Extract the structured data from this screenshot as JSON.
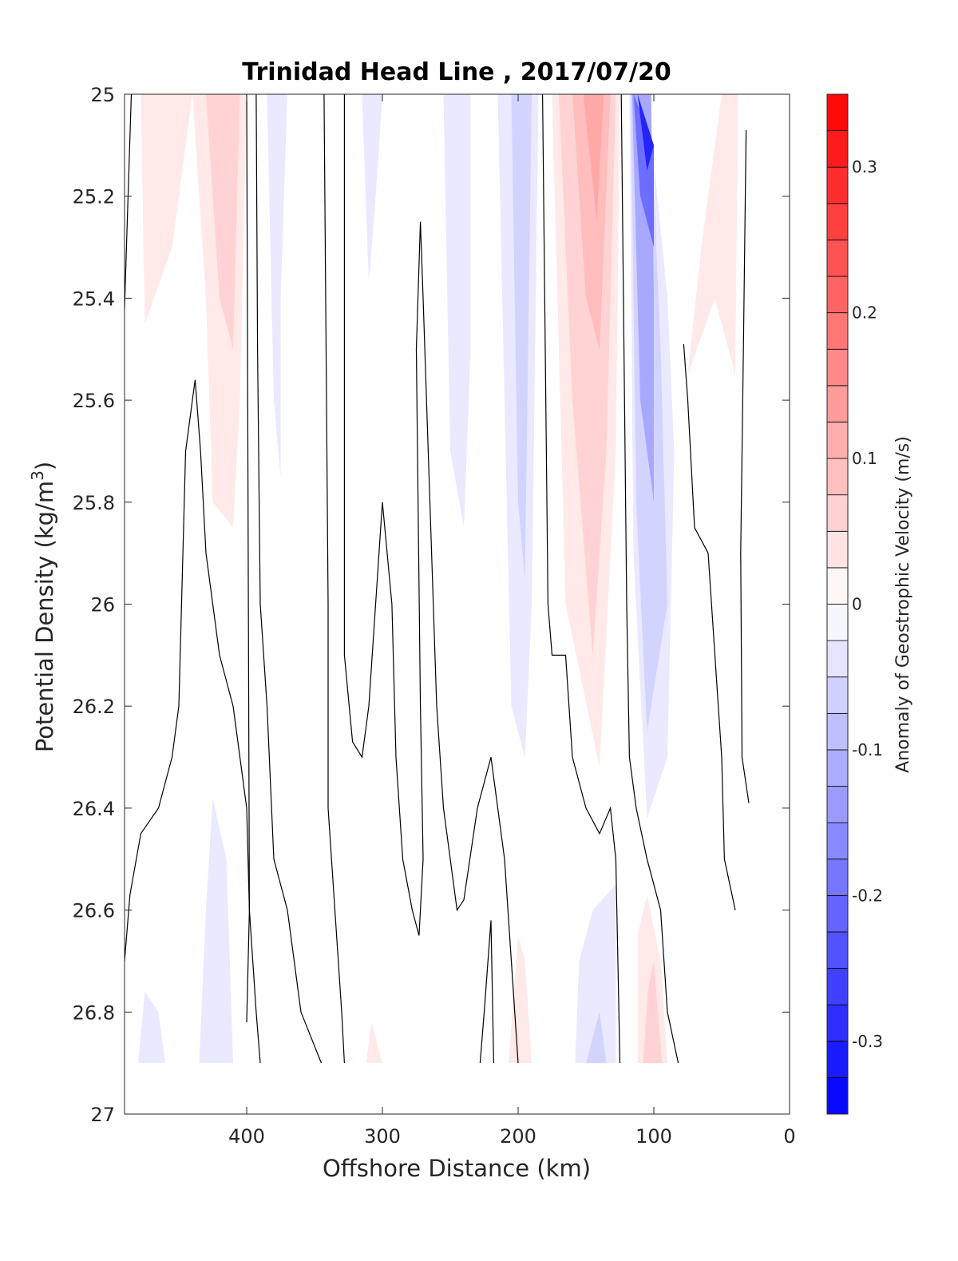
{
  "chart_data": {
    "type": "contourf",
    "title": "Trinidad Head Line , 2017/07/20",
    "xlabel": "Offshore Distance (km)",
    "ylabel": {
      "text": "Potential Density (kg/m",
      "superscript": "3",
      "suffix": ")"
    },
    "xlim": [
      490,
      0
    ],
    "ylim": [
      25,
      27
    ],
    "x_reversed": true,
    "y_reversed": true,
    "xticks": [
      400,
      300,
      200,
      100,
      0
    ],
    "yticks": [
      25,
      25.2,
      25.4,
      25.6,
      25.8,
      26,
      26.2,
      26.4,
      26.6,
      26.8,
      27
    ],
    "grid": false,
    "colorbar": {
      "label": "Anomaly of Geostrophic Velocity (m/s)",
      "range": [
        -0.35,
        0.35
      ],
      "levels": [
        -0.35,
        -0.325,
        -0.3,
        -0.275,
        -0.25,
        -0.225,
        -0.2,
        -0.175,
        -0.15,
        -0.125,
        -0.1,
        -0.075,
        -0.05,
        -0.025,
        0,
        0.025,
        0.05,
        0.075,
        0.1,
        0.125,
        0.15,
        0.175,
        0.2,
        0.225,
        0.25,
        0.275,
        0.3,
        0.325,
        0.35
      ],
      "ticks": [
        -0.3,
        -0.2,
        -0.1,
        0,
        0.1,
        0.2,
        0.3
      ],
      "tick_labels": [
        "-0.3",
        "-0.2",
        "-0.1",
        "0",
        "0.1",
        "0.2",
        "0.3"
      ],
      "neg_color": "#0000ff",
      "pos_color": "#ff0000",
      "mid_color": "#ffffff"
    },
    "filled_regions": [
      {
        "value": 0.03,
        "points": [
          [
            478,
            25
          ],
          [
            440,
            25
          ],
          [
            455,
            25.3
          ],
          [
            475,
            25.45
          ]
        ]
      },
      {
        "value": 0.03,
        "points": [
          [
            440,
            25
          ],
          [
            400,
            25
          ],
          [
            405,
            25.6
          ],
          [
            410,
            25.85
          ],
          [
            425,
            25.8
          ],
          [
            430,
            25.4
          ]
        ]
      },
      {
        "value": 0.06,
        "points": [
          [
            430,
            25
          ],
          [
            405,
            25
          ],
          [
            410,
            25.5
          ],
          [
            420,
            25.4
          ]
        ]
      },
      {
        "value": -0.03,
        "points": [
          [
            385,
            25
          ],
          [
            370,
            25
          ],
          [
            375,
            25.4
          ],
          [
            375,
            25.75
          ],
          [
            380,
            25.6
          ]
        ]
      },
      {
        "value": -0.03,
        "points": [
          [
            315,
            25
          ],
          [
            300,
            25
          ],
          [
            305,
            25.2
          ],
          [
            310,
            25.37
          ]
        ]
      },
      {
        "value": -0.03,
        "points": [
          [
            255,
            25
          ],
          [
            235,
            25
          ],
          [
            235,
            25.5
          ],
          [
            240,
            25.85
          ],
          [
            250,
            25.7
          ]
        ]
      },
      {
        "value": -0.03,
        "points": [
          [
            215,
            25
          ],
          [
            185,
            25
          ],
          [
            190,
            26.0
          ],
          [
            195,
            26.3
          ],
          [
            205,
            26.2
          ]
        ]
      },
      {
        "value": -0.06,
        "points": [
          [
            205,
            25
          ],
          [
            190,
            25
          ],
          [
            195,
            25.95
          ],
          [
            200,
            25.8
          ]
        ]
      },
      {
        "value": 0.03,
        "points": [
          [
            175,
            25
          ],
          [
            125,
            25
          ],
          [
            128,
            25.7
          ],
          [
            140,
            26.32
          ],
          [
            165,
            26.0
          ]
        ]
      },
      {
        "value": 0.06,
        "points": [
          [
            170,
            25
          ],
          [
            128,
            25
          ],
          [
            135,
            25.7
          ],
          [
            145,
            26.1
          ],
          [
            160,
            25.6
          ]
        ]
      },
      {
        "value": 0.09,
        "points": [
          [
            160,
            25
          ],
          [
            132,
            25
          ],
          [
            140,
            25.5
          ],
          [
            150,
            25.4
          ]
        ]
      },
      {
        "value": 0.12,
        "points": [
          [
            152,
            25
          ],
          [
            137,
            25
          ],
          [
            142,
            25.25
          ]
        ]
      },
      {
        "value": -0.03,
        "points": [
          [
            118,
            25
          ],
          [
            105,
            25
          ],
          [
            90,
            25.4
          ],
          [
            85,
            25.7
          ],
          [
            90,
            26.3
          ],
          [
            105,
            26.42
          ],
          [
            115,
            25.9
          ]
        ]
      },
      {
        "value": -0.06,
        "points": [
          [
            117,
            25
          ],
          [
            103,
            25
          ],
          [
            95,
            25.5
          ],
          [
            90,
            26.0
          ],
          [
            105,
            26.25
          ],
          [
            113,
            25.8
          ]
        ]
      },
      {
        "value": -0.12,
        "points": [
          [
            116,
            25
          ],
          [
            102,
            25
          ],
          [
            100,
            25.4
          ],
          [
            100,
            25.8
          ],
          [
            110,
            25.6
          ]
        ]
      },
      {
        "value": -0.2,
        "points": [
          [
            115,
            25
          ],
          [
            100,
            25.1
          ],
          [
            100,
            25.3
          ],
          [
            110,
            25.2
          ]
        ]
      },
      {
        "value": -0.3,
        "points": [
          [
            112,
            25
          ],
          [
            100,
            25.1
          ],
          [
            105,
            25.15
          ]
        ]
      },
      {
        "value": 0.03,
        "points": [
          [
            50,
            25
          ],
          [
            38,
            25
          ],
          [
            40,
            25.55
          ],
          [
            55,
            25.4
          ],
          [
            75,
            25.55
          ],
          [
            65,
            25.3
          ]
        ]
      },
      {
        "value": -0.03,
        "points": [
          [
            480,
            26.9
          ],
          [
            460,
            26.9
          ],
          [
            465,
            26.8
          ],
          [
            475,
            26.76
          ]
        ]
      },
      {
        "value": -0.03,
        "points": [
          [
            435,
            26.9
          ],
          [
            410,
            26.9
          ],
          [
            415,
            26.5
          ],
          [
            425,
            26.38
          ],
          [
            430,
            26.6
          ]
        ]
      },
      {
        "value": 0.03,
        "points": [
          [
            312,
            26.9
          ],
          [
            300,
            26.9
          ],
          [
            308,
            26.82
          ]
        ]
      },
      {
        "value": 0.03,
        "points": [
          [
            207,
            26.9
          ],
          [
            190,
            26.9
          ],
          [
            195,
            26.7
          ],
          [
            200,
            26.65
          ]
        ]
      },
      {
        "value": -0.03,
        "points": [
          [
            158,
            26.9
          ],
          [
            128,
            26.9
          ],
          [
            128,
            26.55
          ],
          [
            145,
            26.6
          ],
          [
            155,
            26.7
          ]
        ]
      },
      {
        "value": -0.06,
        "points": [
          [
            150,
            26.9
          ],
          [
            135,
            26.9
          ],
          [
            140,
            26.8
          ]
        ]
      },
      {
        "value": 0.03,
        "points": [
          [
            112,
            26.9
          ],
          [
            90,
            26.9
          ],
          [
            95,
            26.7
          ],
          [
            105,
            26.57
          ],
          [
            112,
            26.65
          ]
        ]
      },
      {
        "value": 0.06,
        "points": [
          [
            108,
            26.9
          ],
          [
            94,
            26.9
          ],
          [
            100,
            26.7
          ],
          [
            104,
            26.75
          ]
        ]
      }
    ],
    "contour_lines": [
      [
        [
          490,
          25.42
        ],
        [
          488,
          25.25
        ],
        [
          485,
          25
        ]
      ],
      [
        [
          490,
          26.7
        ],
        [
          486,
          26.57
        ],
        [
          478,
          26.45
        ],
        [
          465,
          26.4
        ],
        [
          455,
          26.3
        ],
        [
          450,
          26.2
        ],
        [
          448,
          26.0
        ],
        [
          445,
          25.7
        ],
        [
          440,
          25.6
        ],
        [
          438,
          25.56
        ],
        [
          434,
          25.7
        ],
        [
          430,
          25.9
        ],
        [
          425,
          26.0
        ],
        [
          420,
          26.1
        ],
        [
          410,
          26.2
        ],
        [
          400,
          26.4
        ],
        [
          398,
          26.6
        ],
        [
          393,
          26.8
        ],
        [
          390,
          26.9
        ]
      ],
      [
        [
          400,
          26.82
        ],
        [
          398,
          26.6
        ],
        [
          400,
          25.0
        ]
      ],
      [
        [
          393,
          25
        ],
        [
          392,
          25.5
        ],
        [
          390,
          26.0
        ],
        [
          385,
          26.2
        ],
        [
          380,
          26.5
        ],
        [
          370,
          26.6
        ],
        [
          360,
          26.8
        ],
        [
          345,
          26.9
        ]
      ],
      [
        [
          343,
          25
        ],
        [
          340,
          26.0
        ],
        [
          340,
          26.4
        ],
        [
          335,
          26.6
        ],
        [
          330,
          26.8
        ],
        [
          328,
          26.9
        ]
      ],
      [
        [
          328,
          25
        ],
        [
          328,
          26.1
        ],
        [
          322,
          26.27
        ],
        [
          315,
          26.3
        ],
        [
          310,
          26.2
        ],
        [
          305,
          26.0
        ],
        [
          300,
          25.8
        ],
        [
          293,
          26.0
        ],
        [
          290,
          26.3
        ],
        [
          285,
          26.5
        ],
        [
          278,
          26.6
        ],
        [
          273,
          26.65
        ],
        [
          270,
          26.5
        ],
        [
          272,
          26.2
        ],
        [
          275,
          25.5
        ],
        [
          272,
          25.25
        ],
        [
          270,
          25.4
        ],
        [
          265,
          25.8
        ],
        [
          260,
          26.2
        ],
        [
          255,
          26.4
        ],
        [
          250,
          26.5
        ],
        [
          245,
          26.6
        ],
        [
          240,
          26.58
        ],
        [
          230,
          26.4
        ],
        [
          220,
          26.3
        ],
        [
          215,
          26.4
        ],
        [
          210,
          26.5
        ],
        [
          205,
          26.7
        ],
        [
          200,
          26.9
        ]
      ],
      [
        [
          228,
          26.9
        ],
        [
          225,
          26.8
        ],
        [
          220,
          26.62
        ],
        [
          218,
          26.9
        ]
      ],
      [
        [
          182,
          25
        ],
        [
          180,
          25.5
        ],
        [
          178,
          26.0
        ],
        [
          175,
          26.1
        ],
        [
          165,
          26.1
        ],
        [
          160,
          26.3
        ],
        [
          150,
          26.4
        ],
        [
          140,
          26.45
        ],
        [
          132,
          26.4
        ],
        [
          128,
          26.5
        ],
        [
          125,
          26.9
        ]
      ],
      [
        [
          124,
          25
        ],
        [
          122,
          25.5
        ],
        [
          120,
          26.0
        ],
        [
          118,
          26.3
        ],
        [
          113,
          26.4
        ],
        [
          105,
          26.5
        ],
        [
          100,
          26.55
        ],
        [
          95,
          26.6
        ],
        [
          90,
          26.8
        ],
        [
          82,
          26.9
        ]
      ],
      [
        [
          78,
          25.49
        ],
        [
          75,
          25.6
        ],
        [
          70,
          25.85
        ],
        [
          60,
          25.9
        ],
        [
          55,
          26.1
        ],
        [
          50,
          26.3
        ],
        [
          48,
          26.5
        ],
        [
          40,
          26.6
        ]
      ],
      [
        [
          32,
          25.07
        ],
        [
          34,
          25.5
        ],
        [
          36,
          25.9
        ],
        [
          35,
          26.3
        ],
        [
          30,
          26.39
        ]
      ]
    ]
  }
}
